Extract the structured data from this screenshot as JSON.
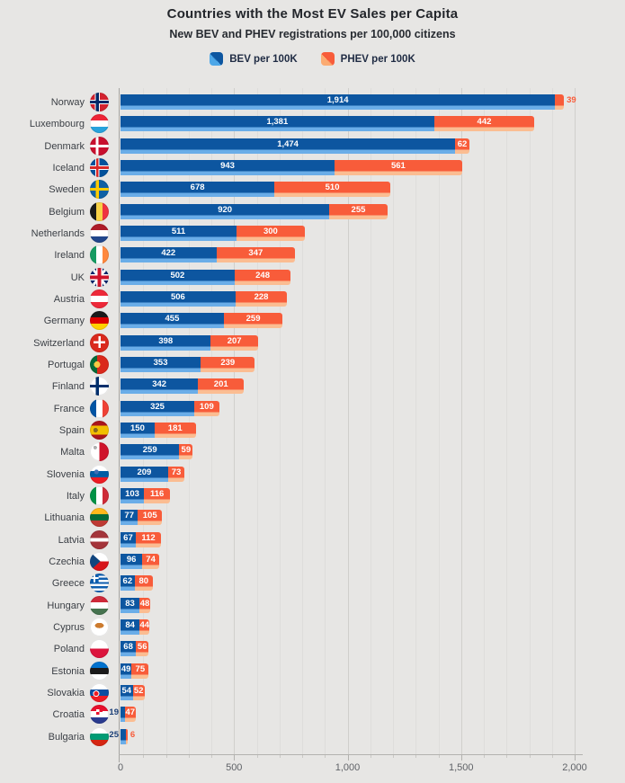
{
  "title": "Countries with the Most EV Sales per Capita",
  "subtitle": "New BEV and PHEV registrations per 100,000 citizens",
  "legend": [
    {
      "label": "BEV per 100K",
      "color": "#0d56a0",
      "light_color": "#6aade8"
    },
    {
      "label": "PHEV per 100K",
      "color": "#f85c3a",
      "light_color": "#fbbd92"
    }
  ],
  "chart_data": {
    "type": "bar",
    "orientation": "horizontal",
    "stacked": true,
    "title": "Countries with the Most EV Sales per Capita",
    "subtitle": "New BEV and PHEV registrations per 100,000 citizens",
    "xlabel": "",
    "ylabel": "",
    "xlim": [
      0,
      2000
    ],
    "grid": "vertical, major every 500, minor every 100",
    "legend_position": "top-center",
    "series_names": [
      "BEV per 100K",
      "PHEV per 100K"
    ],
    "colors": {
      "bev": "#0d56a0",
      "bev_light": "#6aade8",
      "phev": "#f85c3a",
      "phev_light": "#fbbd92"
    },
    "xticks": [
      {
        "value": 0,
        "label": "0"
      },
      {
        "value": 500,
        "label": "500"
      },
      {
        "value": 1000,
        "label": "1,000"
      },
      {
        "value": 1500,
        "label": "1,500"
      },
      {
        "value": 2000,
        "label": "2,000"
      }
    ],
    "rows": [
      {
        "country": "Norway",
        "flag": "no",
        "bev": 1914,
        "phev": 39
      },
      {
        "country": "Luxembourg",
        "flag": "lu",
        "bev": 1381,
        "phev": 442
      },
      {
        "country": "Denmark",
        "flag": "dk",
        "bev": 1474,
        "phev": 62
      },
      {
        "country": "Iceland",
        "flag": "is",
        "bev": 943,
        "phev": 561
      },
      {
        "country": "Sweden",
        "flag": "se",
        "bev": 678,
        "phev": 510
      },
      {
        "country": "Belgium",
        "flag": "be",
        "bev": 920,
        "phev": 255
      },
      {
        "country": "Netherlands",
        "flag": "nl",
        "bev": 511,
        "phev": 300
      },
      {
        "country": "Ireland",
        "flag": "ie",
        "bev": 422,
        "phev": 347
      },
      {
        "country": "UK",
        "flag": "gb",
        "bev": 502,
        "phev": 248
      },
      {
        "country": "Austria",
        "flag": "at",
        "bev": 506,
        "phev": 228
      },
      {
        "country": "Germany",
        "flag": "de",
        "bev": 455,
        "phev": 259
      },
      {
        "country": "Switzerland",
        "flag": "ch",
        "bev": 398,
        "phev": 207
      },
      {
        "country": "Portugal",
        "flag": "pt",
        "bev": 353,
        "phev": 239
      },
      {
        "country": "Finland",
        "flag": "fi",
        "bev": 342,
        "phev": 201
      },
      {
        "country": "France",
        "flag": "fr",
        "bev": 325,
        "phev": 109
      },
      {
        "country": "Spain",
        "flag": "es",
        "bev": 150,
        "phev": 181
      },
      {
        "country": "Malta",
        "flag": "mt",
        "bev": 259,
        "phev": 59
      },
      {
        "country": "Slovenia",
        "flag": "si",
        "bev": 209,
        "phev": 73
      },
      {
        "country": "Italy",
        "flag": "it",
        "bev": 103,
        "phev": 116
      },
      {
        "country": "Lithuania",
        "flag": "lt",
        "bev": 77,
        "phev": 105
      },
      {
        "country": "Latvia",
        "flag": "lv",
        "bev": 67,
        "phev": 112
      },
      {
        "country": "Czechia",
        "flag": "cz",
        "bev": 96,
        "phev": 74
      },
      {
        "country": "Greece",
        "flag": "gr",
        "bev": 62,
        "phev": 80
      },
      {
        "country": "Hungary",
        "flag": "hu",
        "bev": 83,
        "phev": 48
      },
      {
        "country": "Cyprus",
        "flag": "cy",
        "bev": 84,
        "phev": 44
      },
      {
        "country": "Poland",
        "flag": "pl",
        "bev": 68,
        "phev": 56
      },
      {
        "country": "Estonia",
        "flag": "ee",
        "bev": 49,
        "phev": 75
      },
      {
        "country": "Slovakia",
        "flag": "sk",
        "bev": 54,
        "phev": 52
      },
      {
        "country": "Croatia",
        "flag": "hr",
        "bev": 19,
        "phev": 47
      },
      {
        "country": "Bulgaria",
        "flag": "bg",
        "bev": 25,
        "phev": 6
      }
    ]
  }
}
